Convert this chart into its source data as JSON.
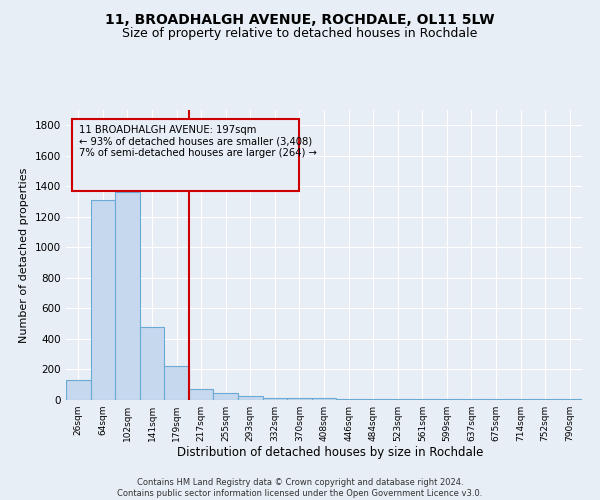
{
  "title1": "11, BROADHALGH AVENUE, ROCHDALE, OL11 5LW",
  "title2": "Size of property relative to detached houses in Rochdale",
  "xlabel": "Distribution of detached houses by size in Rochdale",
  "ylabel": "Number of detached properties",
  "footnote": "Contains HM Land Registry data © Crown copyright and database right 2024.\nContains public sector information licensed under the Open Government Licence v3.0.",
  "bar_labels": [
    "26sqm",
    "64sqm",
    "102sqm",
    "141sqm",
    "179sqm",
    "217sqm",
    "255sqm",
    "293sqm",
    "332sqm",
    "370sqm",
    "408sqm",
    "446sqm",
    "484sqm",
    "523sqm",
    "561sqm",
    "599sqm",
    "637sqm",
    "675sqm",
    "714sqm",
    "752sqm",
    "790sqm"
  ],
  "bar_heights": [
    130,
    1310,
    1360,
    480,
    225,
    75,
    45,
    25,
    15,
    15,
    10,
    5,
    5,
    5,
    5,
    5,
    5,
    5,
    5,
    5,
    5
  ],
  "bar_color": "#c5d8ee",
  "bar_edge_color": "#6aaad4",
  "vline_x": 4.5,
  "vline_color": "#cc0000",
  "annotation_text": "11 BROADHALGH AVENUE: 197sqm\n← 93% of detached houses are smaller (3,408)\n7% of semi-detached houses are larger (264) →",
  "ylim": [
    0,
    1900
  ],
  "yticks": [
    0,
    200,
    400,
    600,
    800,
    1000,
    1200,
    1400,
    1600,
    1800
  ],
  "bg_color": "#e8eef6",
  "grid_color": "#ffffff",
  "title1_fontsize": 10,
  "title2_fontsize": 9,
  "xlabel_fontsize": 8.5,
  "ylabel_fontsize": 8
}
